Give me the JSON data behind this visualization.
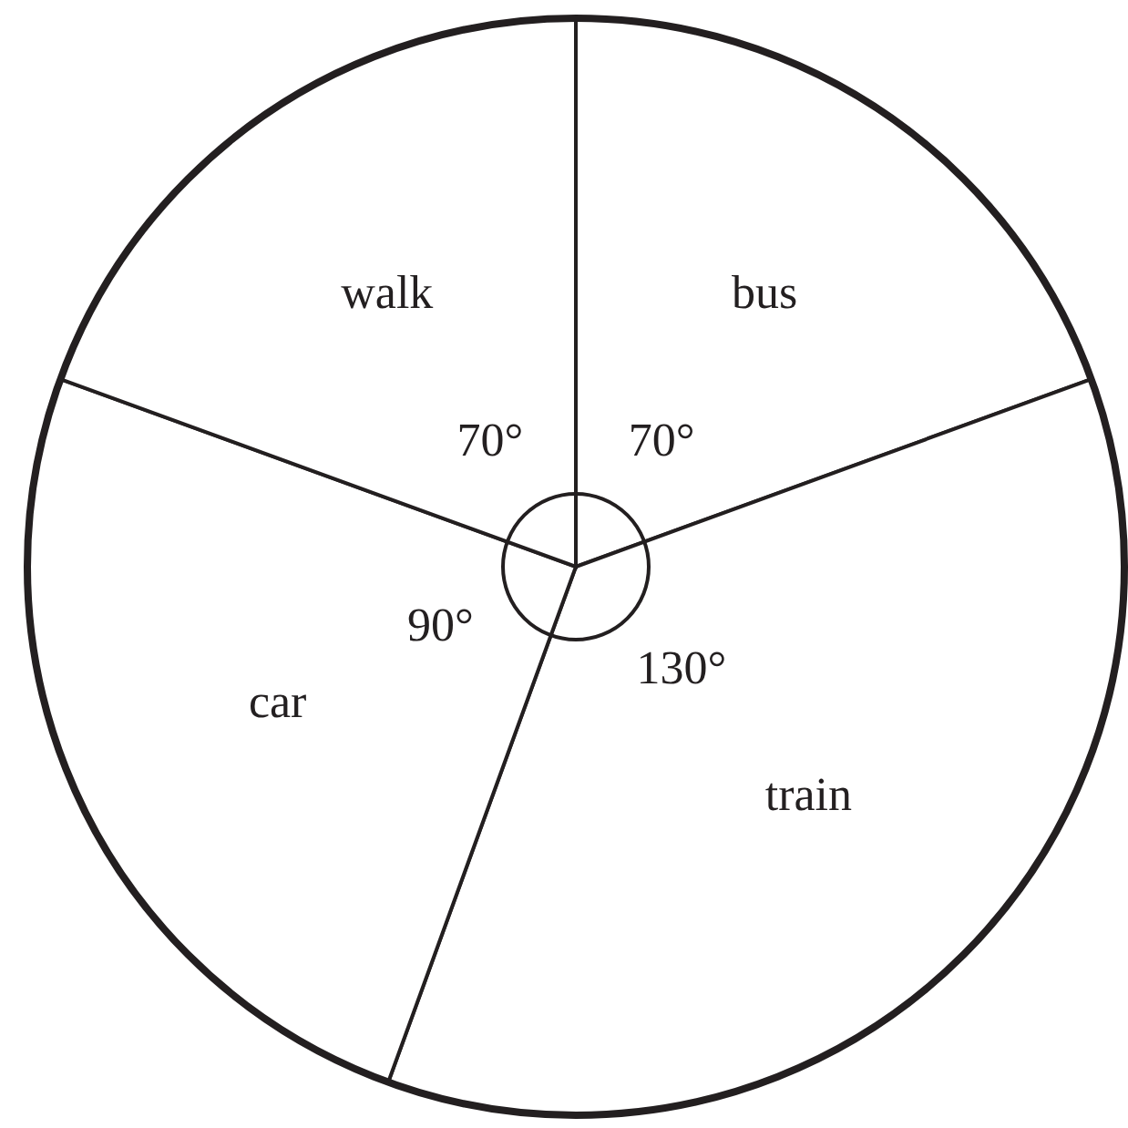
{
  "chart_data": {
    "type": "pie",
    "categories": [
      "bus",
      "train",
      "car",
      "walk"
    ],
    "values": [
      70,
      130,
      90,
      70
    ],
    "value_labels": [
      "70°",
      "130°",
      "90°",
      "70°"
    ],
    "colors": [
      "#ffffff",
      "#ffffff",
      "#ffffff",
      "#ffffff"
    ]
  }
}
